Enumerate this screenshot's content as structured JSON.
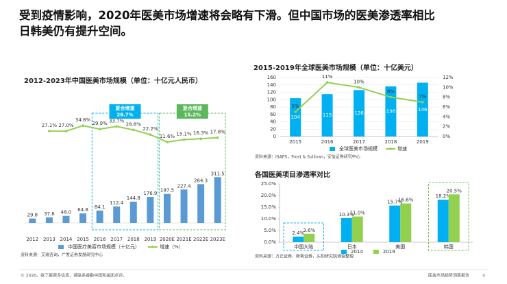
{
  "headline": [
    "受到疫情影响，2020年医美市场增速将会略有下滑。但中国市场的医美渗透率相比",
    "日韩美仍有提升空间。"
  ],
  "chart_data": [
    {
      "type": "combo",
      "title": "2012-2023年中国医美市场规模（单位：十亿元人民币）",
      "categories": [
        "2012",
        "2013",
        "2014",
        "2015",
        "2016",
        "2017",
        "2018",
        "2019",
        "2020E",
        "2021E",
        "2022E",
        "2023E"
      ],
      "series": [
        {
          "name": "中国医疗美容市场规模（十亿元）",
          "type": "bar",
          "color": "#5b9bd5",
          "values": [
            29.8,
            37.8,
            48.0,
            64.8,
            84.1,
            112.4,
            144.8,
            176.9,
            197.5,
            227.4,
            264.3,
            311.5
          ],
          "value_labels": [
            "29.8",
            "37.8",
            "48.0",
            "64.8",
            "84.1",
            "112.4",
            "144.8",
            "176.9",
            "197.5",
            "227.4",
            "264.3",
            "311.5"
          ]
        },
        {
          "name": "增速（%）",
          "type": "line",
          "axis": "y2",
          "color": "#92d050",
          "values": [
            null,
            27.1,
            27.0,
            34.8,
            29.9,
            33.7,
            28.8,
            22.2,
            11.6,
            15.1,
            16.3,
            17.8
          ],
          "value_labels": [
            null,
            "27.1%",
            "27.0%",
            "34.8%",
            "29.9%",
            "33.7%",
            "28.8%",
            "22.2%",
            "11.6%",
            "15.1%",
            "16.3%",
            "17.8%"
          ]
        }
      ],
      "ylim": [
        0,
        350
      ],
      "y2lim": [
        0,
        100
      ],
      "annotations": [
        {
          "text": "复合增速",
          "value": 28.7,
          "label": "28.7%",
          "color": "#00b0f0"
        },
        {
          "text": "复合增速",
          "value": 15.2,
          "label": "15.2%",
          "color": "#5cb85c"
        }
      ],
      "source": "资料来源：艾瑞咨询，广发证券发展研究中心"
    },
    {
      "type": "combo",
      "title": "2015-2019年全球医美市场规模（单位：十亿美元）",
      "categories": [
        "2015",
        "2016",
        "2017",
        "2018",
        "2019"
      ],
      "series": [
        {
          "name": "全球医美市场规模",
          "type": "bar",
          "color": "#00b0f0",
          "values": [
            104,
            115,
            126,
            136,
            146
          ]
        },
        {
          "name": "增速",
          "type": "line",
          "axis": "y2",
          "color": "#92d050",
          "values": [
            5,
            11,
            10,
            8,
            7
          ],
          "value_labels": [
            "5%",
            "11%",
            "10%",
            "8%",
            "7%"
          ]
        }
      ],
      "ylim": [
        0,
        160
      ],
      "yticks": [
        0,
        20,
        40,
        60,
        80,
        100,
        120,
        140,
        160
      ],
      "y2lim": [
        0,
        12
      ],
      "y2ticks": [
        {
          "value": 0,
          "label": "0%"
        },
        {
          "value": 2,
          "label": "2%"
        },
        {
          "value": 4,
          "label": "4%"
        },
        {
          "value": 6,
          "label": "6%"
        },
        {
          "value": 8,
          "label": "8%"
        },
        {
          "value": 10,
          "label": "10%"
        },
        {
          "value": 12,
          "label": "12%"
        }
      ],
      "grid": true,
      "source": "资料来源：ISAPS，Frost & Sullivan，安信证券研究中心"
    },
    {
      "type": "bar",
      "title": "各国医美项目渗透率对比",
      "categories": [
        "中国大陆",
        "日本",
        "美国",
        "韩国"
      ],
      "series": [
        {
          "name": "2014",
          "type": "bar",
          "color": "#00b0f0",
          "values": [
            2.4,
            10.3,
            15.7,
            18.2
          ],
          "value_labels": [
            "2.4%",
            "10.3%",
            "15.7%",
            "18.2%"
          ]
        },
        {
          "name": "2019",
          "type": "bar",
          "color": "#92d050",
          "values": [
            3.6,
            11.0,
            16.6,
            20.5
          ],
          "value_labels": [
            "3.6%",
            "11.0%",
            "16.6%",
            "20.5%"
          ]
        }
      ],
      "ylim": [
        0,
        25
      ],
      "yticks": [
        {
          "value": 0,
          "label": "0.0%"
        },
        {
          "value": 5,
          "label": "5.0%"
        },
        {
          "value": 10,
          "label": "10.0%"
        },
        {
          "value": 15,
          "label": "15.0%"
        },
        {
          "value": 20,
          "label": "20.0%"
        },
        {
          "value": 25,
          "label": "25.0%"
        }
      ],
      "source": "资料来源：方正证券、新氧证券，头豹研究院调查整理"
    }
  ],
  "footer": {
    "left": "© 2020。欲了解更多信息，请联系睿勤中国和美团点评。",
    "right": "医美市场趋势洞察报告",
    "page": "4"
  }
}
